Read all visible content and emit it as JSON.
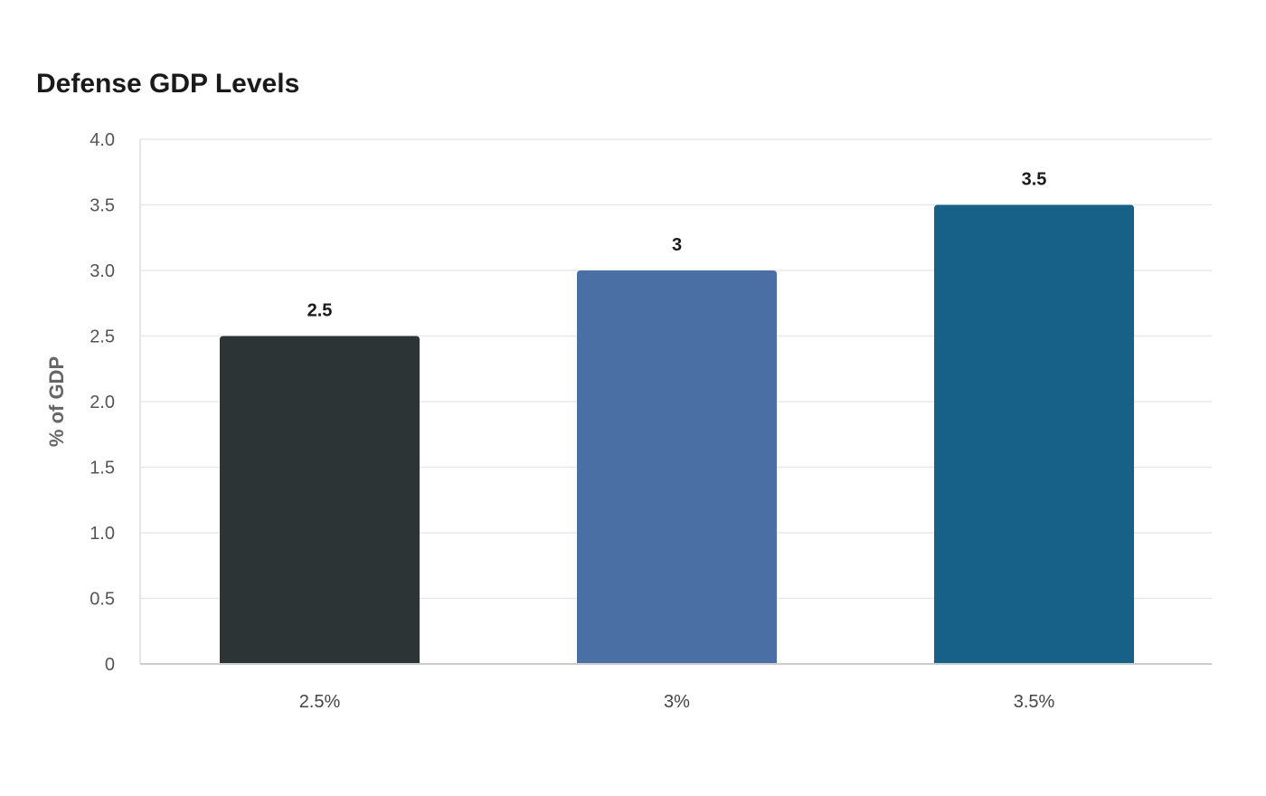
{
  "chart_data": {
    "type": "bar",
    "title": "Defense GDP Levels",
    "xlabel": "",
    "ylabel": "% of GDP",
    "categories": [
      "2.5%",
      "3%",
      "3.5%"
    ],
    "values": [
      2.5,
      3,
      3.5
    ],
    "value_labels": [
      "2.5",
      "3",
      "3.5"
    ],
    "ylim": [
      0,
      4
    ],
    "yticks": [
      0,
      0.5,
      1,
      1.5,
      2,
      2.5,
      3,
      3.5,
      4
    ],
    "ytick_labels": [
      "0",
      "0.5",
      "1.0",
      "1.5",
      "2.0",
      "2.5",
      "3.0",
      "3.5",
      "4.0"
    ],
    "colors": [
      "#2d3436",
      "#4a6fa5",
      "#176189"
    ],
    "grid": true,
    "legend": "none"
  }
}
